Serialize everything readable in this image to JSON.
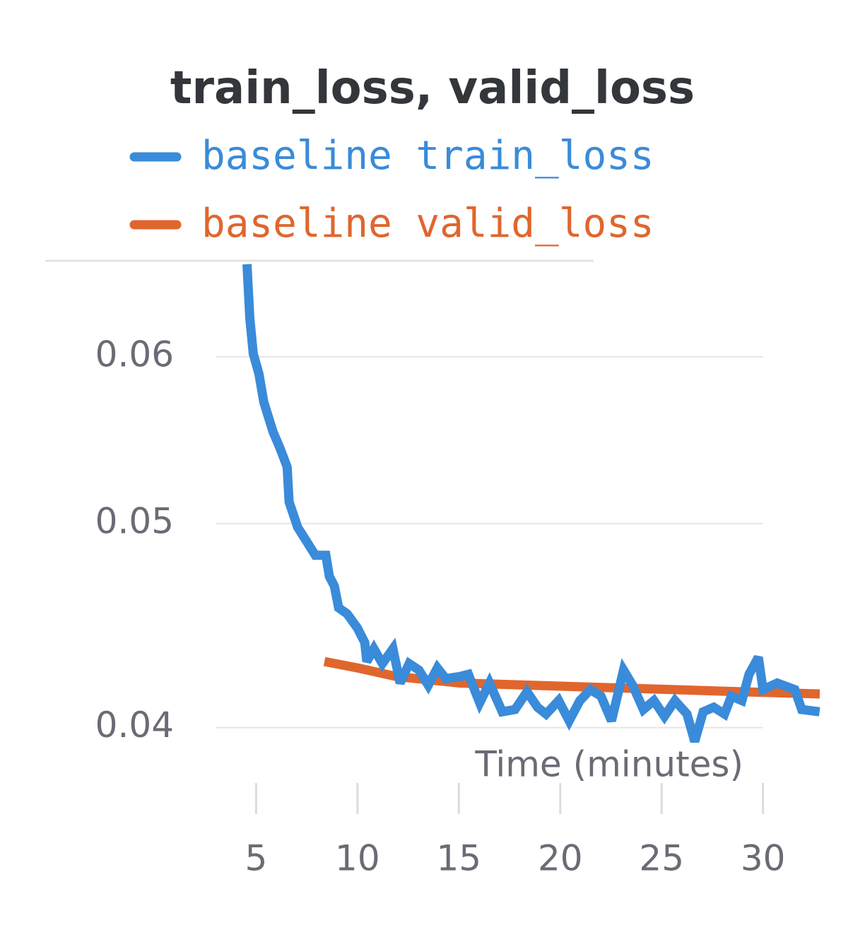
{
  "chart_data": {
    "type": "line",
    "title": "train_loss, valid_loss",
    "x_label": "Time (minutes)",
    "yscale": "log",
    "grid": true,
    "xlim": [
      3,
      32.8
    ],
    "ylim": [
      0.038,
      0.0666
    ],
    "xticks": [
      5,
      10,
      15,
      20,
      25,
      30
    ],
    "yticks": [
      0.04,
      0.05,
      0.06
    ],
    "series": [
      {
        "name": "baseline train_loss",
        "color": "#3a8bd9",
        "x": [
          4.55,
          4.69,
          4.86,
          5.14,
          5.38,
          5.83,
          6.18,
          6.53,
          6.63,
          7.05,
          7.57,
          7.92,
          8.44,
          8.61,
          8.86,
          9.07,
          9.49,
          10.0,
          10.36,
          10.46,
          10.81,
          11.23,
          11.75,
          12.1,
          12.55,
          13.03,
          13.49,
          13.94,
          14.36,
          15.05,
          15.47,
          16.03,
          16.51,
          17.14,
          17.77,
          18.36,
          18.88,
          19.3,
          19.92,
          20.44,
          20.97,
          21.49,
          22.01,
          22.53,
          23.12,
          23.57,
          24.1,
          24.62,
          25.14,
          25.66,
          26.25,
          26.63,
          27.05,
          27.57,
          28.1,
          28.44,
          28.96,
          29.31,
          29.77,
          30.0,
          30.7,
          31.57,
          31.91,
          32.79
        ],
        "values": [
          0.0664,
          0.0626,
          0.0602,
          0.0589,
          0.0571,
          0.0553,
          0.0543,
          0.0532,
          0.0512,
          0.0498,
          0.0489,
          0.0483,
          0.0483,
          0.0472,
          0.0467,
          0.0456,
          0.0453,
          0.0446,
          0.0439,
          0.043,
          0.0436,
          0.0429,
          0.0436,
          0.042,
          0.0429,
          0.0426,
          0.0419,
          0.0427,
          0.0422,
          0.0423,
          0.0424,
          0.0411,
          0.042,
          0.0407,
          0.0408,
          0.0416,
          0.0409,
          0.0406,
          0.0412,
          0.0403,
          0.0412,
          0.0417,
          0.0414,
          0.0403,
          0.0426,
          0.0419,
          0.0408,
          0.0412,
          0.0405,
          0.0412,
          0.0406,
          0.0394,
          0.0407,
          0.0409,
          0.0406,
          0.0414,
          0.0412,
          0.0424,
          0.0432,
          0.0417,
          0.042,
          0.0417,
          0.0408,
          0.0407
        ]
      },
      {
        "name": "baseline valid_loss",
        "color": "#e0662d",
        "x": [
          8.37,
          10.0,
          11.92,
          15.05,
          18.53,
          22.0,
          25.5,
          28.96,
          32.8
        ],
        "values": [
          0.043,
          0.0427,
          0.0423,
          0.042,
          0.0419,
          0.0418,
          0.0417,
          0.0416,
          0.0415
        ]
      }
    ]
  }
}
